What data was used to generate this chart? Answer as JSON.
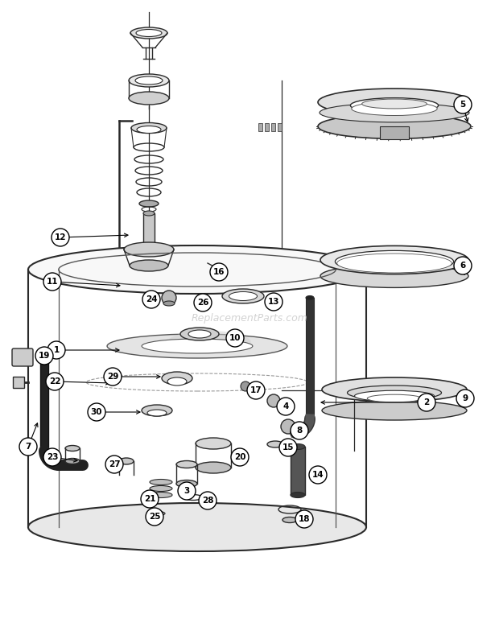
{
  "bg_color": "#ffffff",
  "watermark": "ReplacementParts.com",
  "fig_w": 6.2,
  "fig_h": 7.89,
  "dpi": 100
}
